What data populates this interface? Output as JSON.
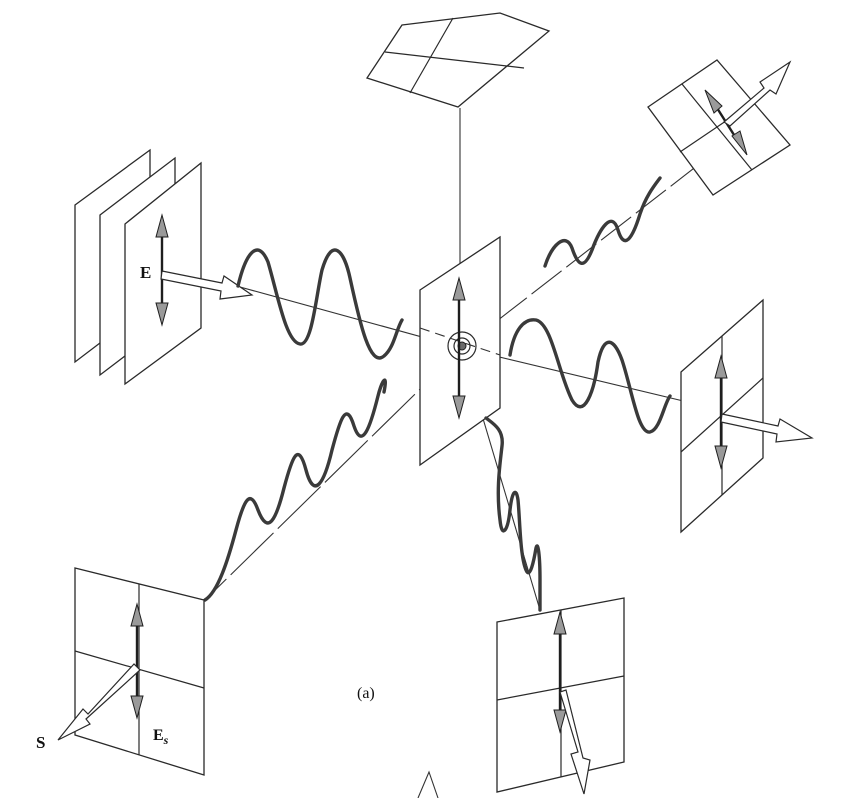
{
  "labels": {
    "incident_field": "E",
    "scattered_field": "E",
    "scattered_field_subscript": "s",
    "poynting": "S",
    "panel_tag": "(a)"
  }
}
